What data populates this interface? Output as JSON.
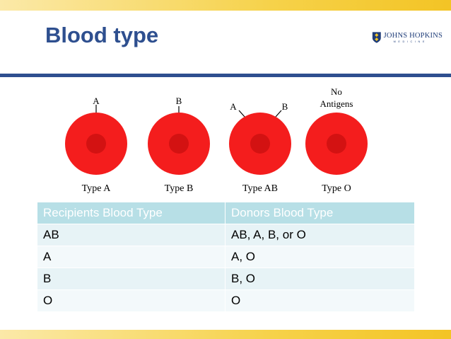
{
  "slide": {
    "title": "Blood type",
    "logo": {
      "name": "JOHNS HOPKINS",
      "sub": "MEDICINE"
    }
  },
  "cells": [
    {
      "type_label": "Type A",
      "antigen_labels": [
        "A"
      ]
    },
    {
      "type_label": "Type B",
      "antigen_labels": [
        "B"
      ]
    },
    {
      "type_label": "Type AB",
      "antigen_labels": [
        "A",
        "B"
      ]
    },
    {
      "type_label": "Type O",
      "antigen_labels": [
        "No",
        "Antigens"
      ]
    }
  ],
  "table": {
    "headers": [
      "Recipients Blood Type",
      "Donors Blood Type"
    ],
    "rows": [
      [
        "AB",
        "AB, A, B, or O"
      ],
      [
        "A",
        "A, O"
      ],
      [
        "B",
        "B, O"
      ],
      [
        "O",
        "O"
      ]
    ]
  },
  "colors": {
    "title": "#2e4f8f",
    "cell": "#f41d1d",
    "cell_center": "#d31212",
    "header_bg": "#b7dfe6"
  }
}
